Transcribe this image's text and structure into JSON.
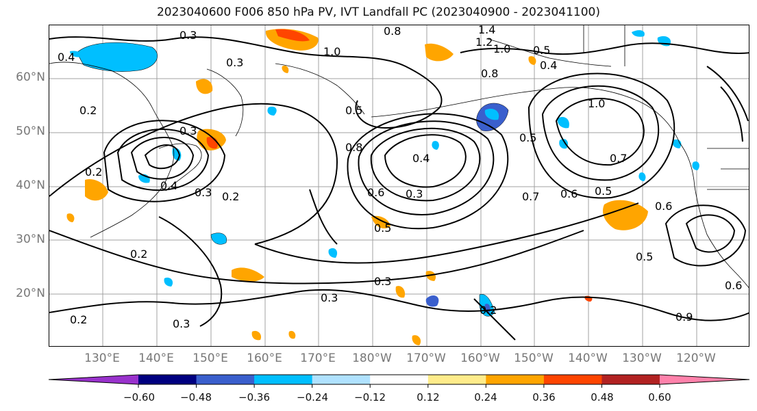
{
  "title": "2023040600 F006 850 hPa PV, IVT Landfall PC (2023040900 - 2023041100)",
  "latitude_labels": [
    "60°N",
    "50°N",
    "40°N",
    "30°N",
    "20°N"
  ],
  "longitude_labels": [
    "130°E",
    "140°E",
    "150°E",
    "160°E",
    "170°E",
    "180°W",
    "170°W",
    "160°W",
    "150°W",
    "140°W",
    "130°W",
    "120°W"
  ],
  "contour_labels": [
    "0.3",
    "0.8",
    "1.4",
    "1.2",
    "1.0",
    "0.4",
    "0.3",
    "1.0",
    "0.5",
    "0.4",
    "0.8",
    "0.2",
    "0.3",
    "0.5",
    "0.8",
    "1.0",
    "0.5",
    "0.7",
    "0.2",
    "0.4",
    "0.3",
    "0.2",
    "0.6",
    "0.3",
    "0.4",
    "0.7",
    "0.6",
    "0.5",
    "0.6",
    "0.5",
    "0.5",
    "0.2",
    "0.3",
    "0.3",
    "0.2",
    "0.3",
    "0.2",
    "0.6",
    "0.9"
  ],
  "colorbar": {
    "colors": [
      "#9932cc",
      "#000080",
      "#3a5fcd",
      "#00bfff",
      "#b0e2ff",
      "#ffffff",
      "#ffec8b",
      "#ffa500",
      "#ff4500",
      "#b22222",
      "#ff82ab"
    ],
    "tick_labels": [
      "−0.60",
      "−0.48",
      "−0.36",
      "−0.24",
      "−0.12",
      "0.12",
      "0.24",
      "0.36",
      "0.48",
      "0.60"
    ]
  }
}
